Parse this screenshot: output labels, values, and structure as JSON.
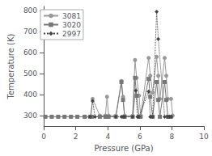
{
  "chart_data": {
    "type": "line",
    "xlabel": "Pressure (GPa)",
    "ylabel": "Temperature (K)",
    "xlim": [
      0,
      10
    ],
    "ylim": [
      250,
      820
    ],
    "xticks": [
      0,
      2,
      4,
      6,
      8,
      10
    ],
    "yticks": [
      300,
      400,
      500,
      600,
      700,
      800
    ],
    "grid": false,
    "legend": "upper left",
    "series": [
      {
        "name": "3081",
        "color": "#999999",
        "marker": "circle",
        "line_style": "solid",
        "x": [
          0.1,
          0.5,
          0.9,
          1.3,
          1.7,
          2.1,
          2.6,
          2.95,
          3.05,
          3.5,
          3.85,
          3.95,
          4.05,
          4.5,
          4.85,
          4.95,
          5.05,
          5.55,
          5.7,
          5.8,
          5.95,
          6.05,
          6.55,
          6.65,
          6.8,
          7.05,
          7.15,
          7.25,
          7.55,
          7.65,
          7.75,
          7.95,
          8.05
        ],
        "values": [
          295,
          295,
          295,
          295,
          295,
          295,
          295,
          295,
          380,
          300,
          300,
          390,
          300,
          300,
          465,
          390,
          300,
          300,
          565,
          480,
          395,
          300,
          575,
          490,
          410,
          580,
          490,
          380,
          575,
          490,
          380,
          380,
          300
        ]
      },
      {
        "name": "3020",
        "color": "#777777",
        "marker": "square",
        "line_style": "solid",
        "x": [
          0.1,
          0.5,
          0.9,
          1.3,
          1.7,
          2.1,
          2.55,
          2.9,
          3.0,
          3.5,
          3.85,
          3.95,
          4.05,
          4.5,
          4.85,
          4.95,
          5.05,
          5.55,
          5.7,
          5.8,
          5.95,
          6.05,
          6.55,
          6.65,
          6.8,
          7.05,
          7.15,
          7.25,
          7.55,
          7.65,
          7.75,
          7.95
        ],
        "values": [
          295,
          295,
          295,
          295,
          295,
          295,
          295,
          295,
          295,
          295,
          295,
          295,
          295,
          295,
          460,
          375,
          295,
          295,
          480,
          395,
          295,
          295,
          475,
          390,
          295,
          460,
          375,
          295,
          460,
          375,
          295,
          295
        ]
      },
      {
        "name": "2997",
        "color": "#444444",
        "marker": "diamond",
        "line_style": "dotted",
        "x": [
          2.9,
          3.05,
          3.2,
          4.5,
          4.85,
          4.95,
          5.05,
          5.55,
          5.75,
          5.85,
          5.95,
          6.55,
          6.65,
          6.8,
          7.05,
          7.15,
          7.55,
          7.75,
          7.85,
          7.95
        ],
        "values": [
          295,
          370,
          295,
          295,
          295,
          295,
          295,
          295,
          420,
          295,
          295,
          415,
          295,
          295,
          795,
          665,
          295,
          295,
          295,
          295
        ]
      }
    ]
  }
}
